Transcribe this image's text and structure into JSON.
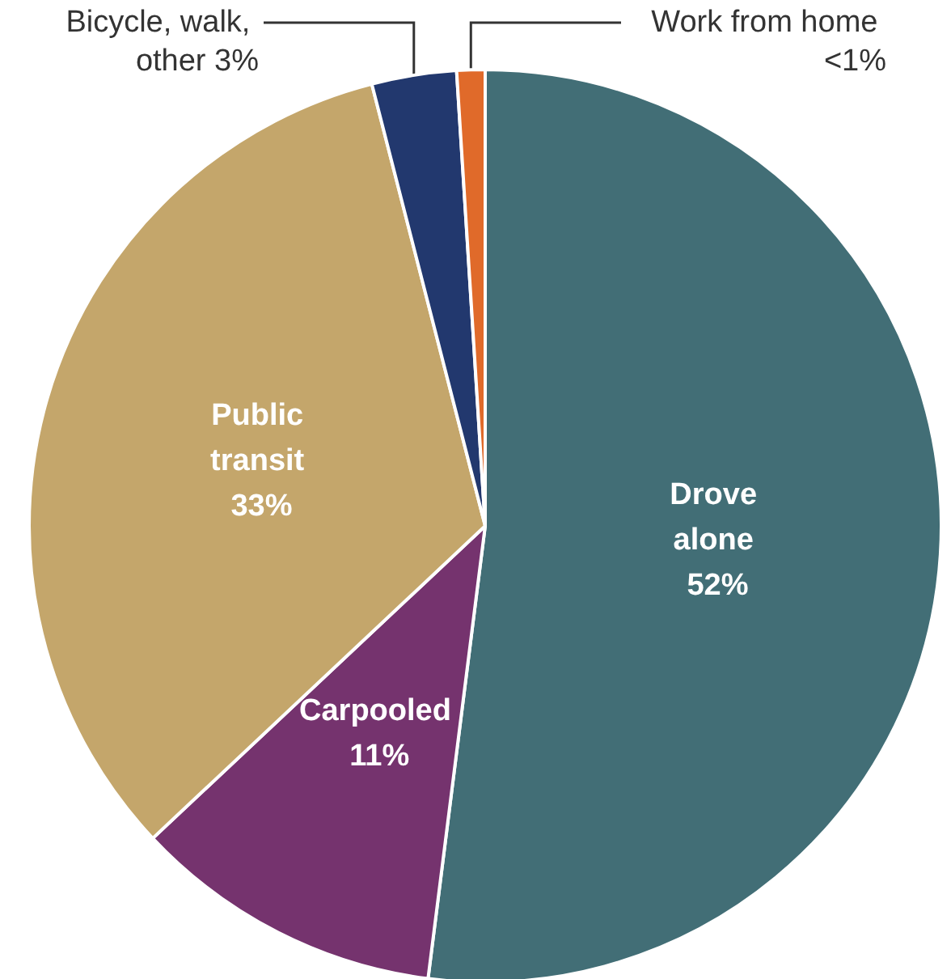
{
  "chart_data": {
    "type": "pie",
    "categories": [
      "Drove alone",
      "Carpooled",
      "Public transit",
      "Bicycle, walk, other",
      "Work from home"
    ],
    "values": [
      52,
      11,
      33,
      3,
      1
    ],
    "value_labels": [
      "52%",
      "11%",
      "33%",
      "3%",
      "<1%"
    ],
    "colors": [
      "#426e76",
      "#75336e",
      "#c4a66b",
      "#22386e",
      "#e06a2a"
    ]
  }
}
